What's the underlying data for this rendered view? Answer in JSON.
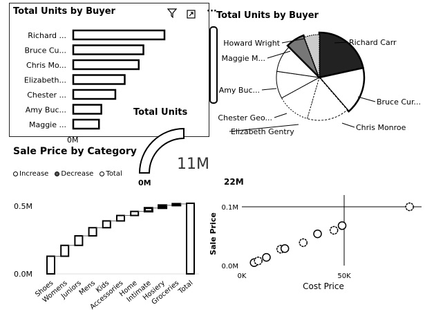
{
  "bar_visual": {
    "title": "Total Units by Buyer",
    "axis_zero": "0M",
    "chart_data": {
      "type": "bar",
      "orientation": "horizontal",
      "categories": [
        "Richard ...",
        "Bruce Cu...",
        "Chris Mo...",
        "Elizabeth...",
        "Chester ...",
        "Amy Buc...",
        "Maggie ..."
      ],
      "values": [
        1.95,
        1.5,
        1.4,
        1.1,
        0.9,
        0.6,
        0.55
      ]
    }
  },
  "toolbar": {
    "filter_icon": "filter-icon",
    "focus_icon": "focus-mode-icon",
    "more_label": "···"
  },
  "pie_visual": {
    "title": "Total Units by Buyer",
    "chart_data": {
      "type": "pie",
      "categories": [
        "Richard Carr",
        "Bruce Cur...",
        "Chris Monroe",
        "Elizabeth Gentry",
        "Chester Geo...",
        "Amy Buc...",
        "Maggie M...",
        "Howard Wright"
      ],
      "values": [
        19,
        15,
        14,
        11,
        9,
        9,
        6,
        5
      ]
    }
  },
  "gauge_visual": {
    "title": "Total Units",
    "min_label": "0M",
    "max_label": "22M",
    "value_label": "11M",
    "chart_data": {
      "type": "gauge",
      "min": 0,
      "max": 22,
      "value": 11
    }
  },
  "waterfall_visual": {
    "title": "Sale Price by Category",
    "legend": {
      "increase": "Increase",
      "decrease": "Decrease",
      "total": "Total"
    },
    "y_ticks": [
      "0.5M",
      "0.0M"
    ],
    "chart_data": {
      "type": "bar",
      "subtype": "waterfall",
      "categories": [
        "Shoes",
        "Womens",
        "Juniors",
        "Mens",
        "Kids",
        "Accessories",
        "Home",
        "Intimate",
        "Hosiery",
        "Groceries",
        "Total"
      ],
      "values": [
        0.13,
        0.08,
        0.07,
        0.06,
        0.05,
        0.04,
        0.03,
        0.025,
        0.02,
        0.01,
        0.52
      ],
      "ylim": [
        0,
        0.55
      ]
    }
  },
  "scatter_visual": {
    "xlabel": "Cost Price",
    "ylabel": "Sale Price",
    "x_ticks": [
      "0K",
      "50K"
    ],
    "y_ticks": [
      "0.1M",
      "0.0M"
    ],
    "chart_data": {
      "type": "scatter",
      "xlabel": "Cost Price",
      "ylabel": "Sale Price",
      "xlim": [
        0,
        80
      ],
      "ylim": [
        0,
        0.12
      ],
      "points": [
        {
          "x": 6,
          "y": 0.005
        },
        {
          "x": 8,
          "y": 0.008
        },
        {
          "x": 12,
          "y": 0.014
        },
        {
          "x": 19,
          "y": 0.028
        },
        {
          "x": 21,
          "y": 0.029
        },
        {
          "x": 30,
          "y": 0.039
        },
        {
          "x": 37,
          "y": 0.054
        },
        {
          "x": 45,
          "y": 0.06
        },
        {
          "x": 49,
          "y": 0.068
        },
        {
          "x": 82,
          "y": 0.1
        }
      ]
    }
  }
}
